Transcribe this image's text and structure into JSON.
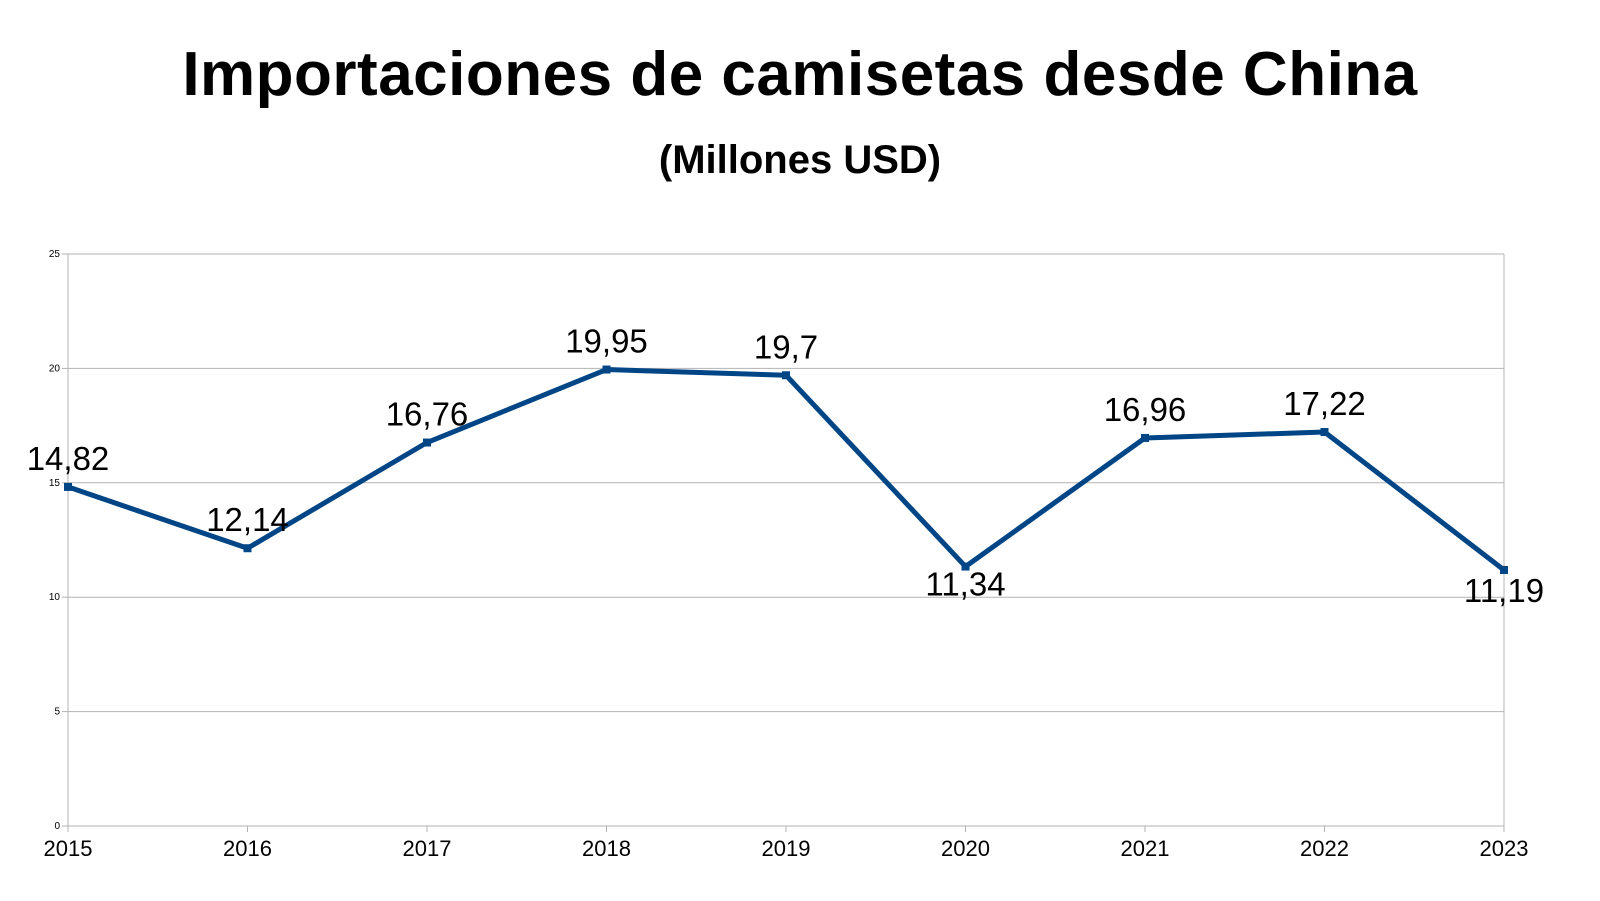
{
  "chart_data": {
    "type": "line",
    "title": "Importaciones de camisetas desde China",
    "subtitle": "(Millones USD)",
    "xlabel": "",
    "ylabel": "",
    "categories": [
      "2015",
      "2016",
      "2017",
      "2018",
      "2019",
      "2020",
      "2021",
      "2022",
      "2023"
    ],
    "series": [
      {
        "values": [
          14.82,
          12.14,
          16.76,
          19.95,
          19.7,
          11.34,
          16.96,
          17.22,
          11.19
        ],
        "data_labels": [
          "14,82",
          "12,14",
          "16,76",
          "19,95",
          "19,7",
          "11,34",
          "16,96",
          "17,22",
          "11,19"
        ],
        "color": "#004586"
      }
    ],
    "ylim": [
      0,
      25
    ],
    "yticks": [
      "0",
      "5",
      "10",
      "15",
      "20",
      "25"
    ],
    "grid": true,
    "legend": "none",
    "colors": {
      "line": "#004586",
      "grid": "#b3b3b3",
      "axis": "#b3b3b3"
    }
  }
}
